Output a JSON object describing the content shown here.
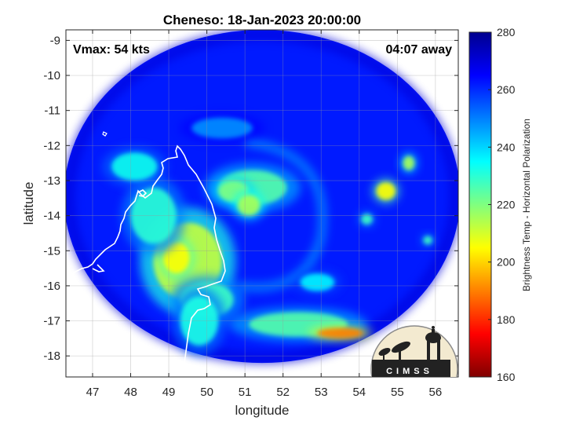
{
  "chart_data": {
    "type": "heatmap",
    "title": "Cheneso: 18-Jan-2023 20:00:00",
    "xlabel": "longitude",
    "ylabel": "latitude",
    "xlim": [
      46.3,
      56.6
    ],
    "ylim": [
      -18.6,
      -8.7
    ],
    "x_ticks": [
      47,
      48,
      49,
      50,
      51,
      52,
      53,
      54,
      55,
      56
    ],
    "y_ticks": [
      -9,
      -10,
      -11,
      -12,
      -13,
      -14,
      -15,
      -16,
      -17,
      -18
    ],
    "grid": true,
    "colorbar": {
      "label": "Brightness Temp - Horizontal Polarization",
      "range": [
        160,
        280
      ],
      "ticks": [
        160,
        180,
        200,
        220,
        240,
        260,
        280
      ],
      "colormap": "jet"
    },
    "swath": {
      "center_lon": 51.45,
      "center_lat": -13.45,
      "radius_lon": 5.2,
      "radius_lat": 4.75,
      "background_value": 262,
      "features": [
        {
          "lon": 51.2,
          "lat": -13.2,
          "rlon": 0.9,
          "rlat": 0.5,
          "value": 225
        },
        {
          "lon": 50.7,
          "lat": -13.3,
          "rlon": 0.4,
          "rlat": 0.3,
          "value": 220
        },
        {
          "lon": 51.1,
          "lat": -13.7,
          "rlon": 0.3,
          "rlat": 0.3,
          "value": 215
        },
        {
          "lon": 49.5,
          "lat": -15.3,
          "rlon": 0.9,
          "rlat": 1.1,
          "value": 212
        },
        {
          "lon": 49.2,
          "lat": -15.2,
          "rlon": 0.35,
          "rlat": 0.45,
          "value": 205
        },
        {
          "lon": 48.6,
          "lat": -14.0,
          "rlon": 0.6,
          "rlat": 0.8,
          "value": 230
        },
        {
          "lon": 48.1,
          "lat": -12.6,
          "rlon": 0.6,
          "rlat": 0.4,
          "value": 233
        },
        {
          "lon": 50.0,
          "lat": -16.4,
          "rlon": 0.7,
          "rlat": 0.5,
          "value": 228
        },
        {
          "lon": 49.8,
          "lat": -17.0,
          "rlon": 0.5,
          "rlat": 0.7,
          "value": 232
        },
        {
          "lon": 52.4,
          "lat": -17.1,
          "rlon": 1.3,
          "rlat": 0.35,
          "value": 225
        },
        {
          "lon": 53.5,
          "lat": -17.35,
          "rlon": 0.6,
          "rlat": 0.15,
          "value": 190
        },
        {
          "lon": 54.7,
          "lat": -13.3,
          "rlon": 0.25,
          "rlat": 0.25,
          "value": 205
        },
        {
          "lon": 55.3,
          "lat": -12.5,
          "rlon": 0.15,
          "rlat": 0.2,
          "value": 215
        },
        {
          "lon": 54.2,
          "lat": -14.1,
          "rlon": 0.15,
          "rlat": 0.15,
          "value": 228
        },
        {
          "lon": 55.8,
          "lat": -14.7,
          "rlon": 0.12,
          "rlat": 0.12,
          "value": 228
        },
        {
          "lon": 52.9,
          "lat": -15.9,
          "rlon": 0.45,
          "rlat": 0.25,
          "value": 236
        },
        {
          "lon": 50.4,
          "lat": -11.5,
          "rlon": 0.8,
          "rlat": 0.3,
          "value": 248
        }
      ]
    },
    "annotations": {
      "vmax": "Vmax: 54 kts",
      "time_away": "04:07 away"
    },
    "logo_text": "CIMSS"
  }
}
